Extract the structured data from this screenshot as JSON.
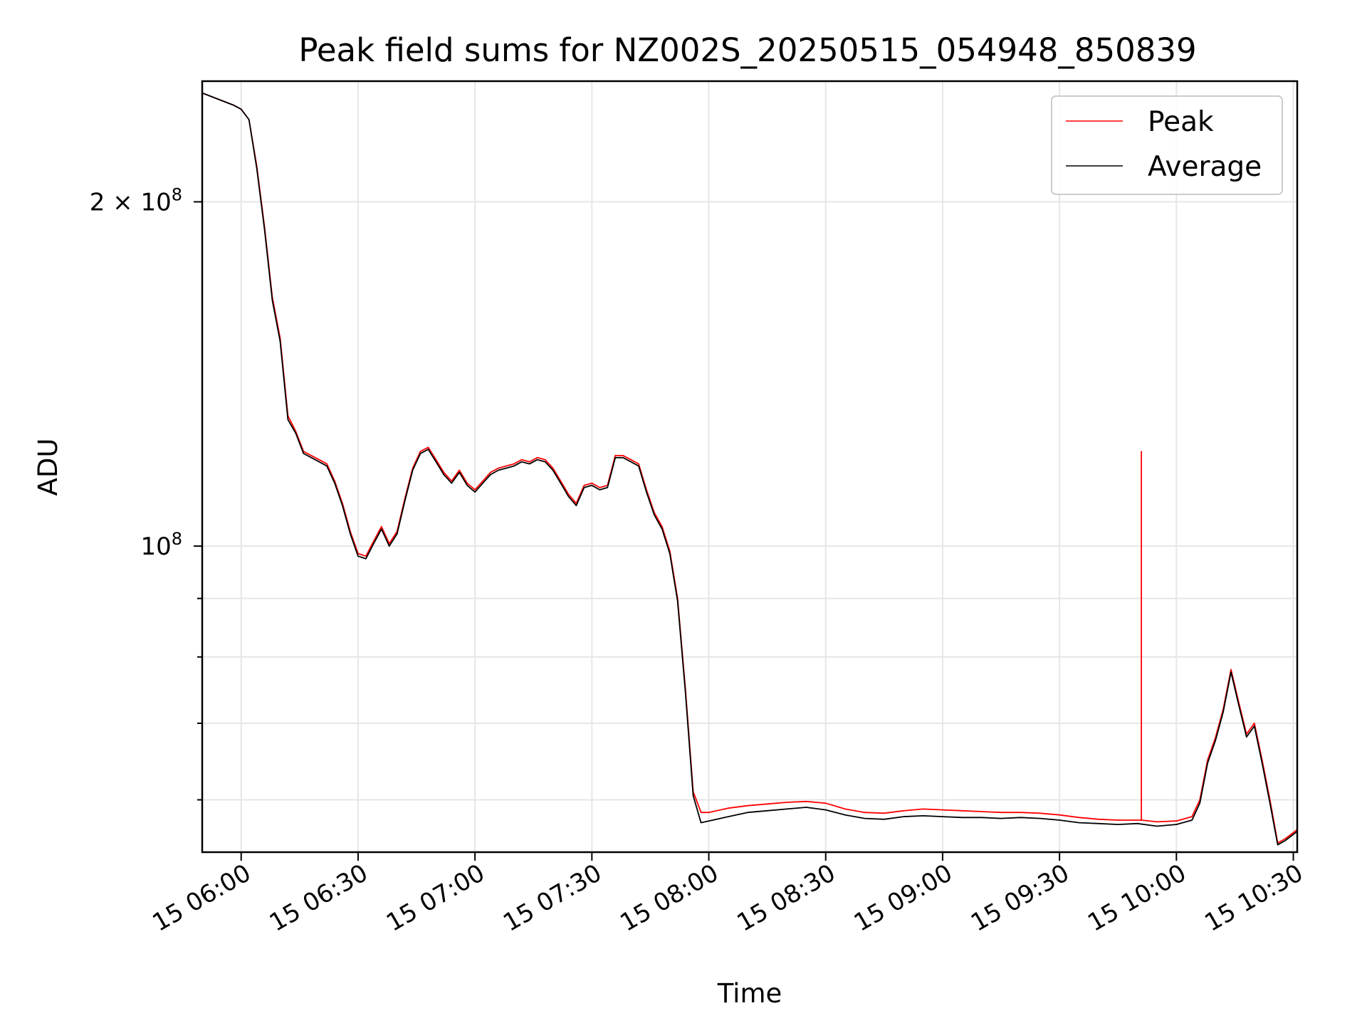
{
  "chart_data": {
    "type": "line",
    "title": "Peak field sums for NZ002S_20250515_054948_850839",
    "xlabel": "Time",
    "ylabel": "ADU",
    "yscale": "log",
    "grid": true,
    "legend_position": "top-right",
    "xlim": [
      "2025-05-15 05:50",
      "2025-05-15 10:31"
    ],
    "ylim": [
      54000000,
      255000000
    ],
    "x_ticks": [
      {
        "value": "2025-05-15 06:00",
        "label": "15 06:00"
      },
      {
        "value": "2025-05-15 06:30",
        "label": "15 06:30"
      },
      {
        "value": "2025-05-15 07:00",
        "label": "15 07:00"
      },
      {
        "value": "2025-05-15 07:30",
        "label": "15 07:30"
      },
      {
        "value": "2025-05-15 08:00",
        "label": "15 08:00"
      },
      {
        "value": "2025-05-15 08:30",
        "label": "15 08:30"
      },
      {
        "value": "2025-05-15 09:00",
        "label": "15 09:00"
      },
      {
        "value": "2025-05-15 09:30",
        "label": "15 09:30"
      },
      {
        "value": "2025-05-15 10:00",
        "label": "15 10:00"
      },
      {
        "value": "2025-05-15 10:30",
        "label": "15 10:30"
      }
    ],
    "y_major_ticks": [
      {
        "value": 100000000,
        "label": "10",
        "sup": "8"
      },
      {
        "value": 200000000,
        "label": "2 × 10",
        "sup": "8"
      }
    ],
    "y_minor_ticks": [
      60000000,
      70000000,
      80000000,
      90000000
    ],
    "series": [
      {
        "name": "Peak",
        "color": "#ff0000",
        "points": [
          [
            "2025-05-15 05:50",
            249000000
          ],
          [
            "2025-05-15 05:54",
            246000000
          ],
          [
            "2025-05-15 05:58",
            243000000
          ],
          [
            "2025-05-15 06:00",
            241000000
          ],
          [
            "2025-05-15 06:02",
            236000000
          ],
          [
            "2025-05-15 06:04",
            215000000
          ],
          [
            "2025-05-15 06:06",
            190000000
          ],
          [
            "2025-05-15 06:08",
            165000000
          ],
          [
            "2025-05-15 06:10",
            152000000
          ],
          [
            "2025-05-15 06:12",
            130000000
          ],
          [
            "2025-05-15 06:14",
            126000000
          ],
          [
            "2025-05-15 06:16",
            121000000
          ],
          [
            "2025-05-15 06:18",
            120000000
          ],
          [
            "2025-05-15 06:20",
            119000000
          ],
          [
            "2025-05-15 06:22",
            118000000
          ],
          [
            "2025-05-15 06:24",
            114000000
          ],
          [
            "2025-05-15 06:26",
            109000000
          ],
          [
            "2025-05-15 06:28",
            103000000
          ],
          [
            "2025-05-15 06:30",
            98500000
          ],
          [
            "2025-05-15 06:32",
            98000000
          ],
          [
            "2025-05-15 06:34",
            101000000
          ],
          [
            "2025-05-15 06:36",
            104000000
          ],
          [
            "2025-05-15 06:38",
            100500000
          ],
          [
            "2025-05-15 06:40",
            103000000
          ],
          [
            "2025-05-15 06:42",
            110000000
          ],
          [
            "2025-05-15 06:44",
            117000000
          ],
          [
            "2025-05-15 06:46",
            121000000
          ],
          [
            "2025-05-15 06:48",
            122000000
          ],
          [
            "2025-05-15 06:50",
            119000000
          ],
          [
            "2025-05-15 06:52",
            116000000
          ],
          [
            "2025-05-15 06:54",
            114000000
          ],
          [
            "2025-05-15 06:56",
            116500000
          ],
          [
            "2025-05-15 06:58",
            113500000
          ],
          [
            "2025-05-15 07:00",
            112000000
          ],
          [
            "2025-05-15 07:02",
            114000000
          ],
          [
            "2025-05-15 07:04",
            116000000
          ],
          [
            "2025-05-15 07:06",
            117000000
          ],
          [
            "2025-05-15 07:08",
            117500000
          ],
          [
            "2025-05-15 07:10",
            118000000
          ],
          [
            "2025-05-15 07:12",
            119000000
          ],
          [
            "2025-05-15 07:14",
            118500000
          ],
          [
            "2025-05-15 07:16",
            119500000
          ],
          [
            "2025-05-15 07:18",
            119000000
          ],
          [
            "2025-05-15 07:20",
            117000000
          ],
          [
            "2025-05-15 07:22",
            114000000
          ],
          [
            "2025-05-15 07:24",
            111000000
          ],
          [
            "2025-05-15 07:26",
            109000000
          ],
          [
            "2025-05-15 07:28",
            113000000
          ],
          [
            "2025-05-15 07:30",
            113500000
          ],
          [
            "2025-05-15 07:32",
            112500000
          ],
          [
            "2025-05-15 07:34",
            113000000
          ],
          [
            "2025-05-15 07:36",
            120000000
          ],
          [
            "2025-05-15 07:38",
            120000000
          ],
          [
            "2025-05-15 07:40",
            119000000
          ],
          [
            "2025-05-15 07:42",
            118000000
          ],
          [
            "2025-05-15 07:44",
            112000000
          ],
          [
            "2025-05-15 07:46",
            107000000
          ],
          [
            "2025-05-15 07:48",
            104000000
          ],
          [
            "2025-05-15 07:50",
            99000000
          ],
          [
            "2025-05-15 07:52",
            90000000
          ],
          [
            "2025-05-15 07:54",
            75000000
          ],
          [
            "2025-05-15 07:56",
            61000000
          ],
          [
            "2025-05-15 07:58",
            58500000
          ],
          [
            "2025-05-15 08:00",
            58500000
          ],
          [
            "2025-05-15 08:05",
            59000000
          ],
          [
            "2025-05-15 08:10",
            59300000
          ],
          [
            "2025-05-15 08:15",
            59500000
          ],
          [
            "2025-05-15 08:20",
            59700000
          ],
          [
            "2025-05-15 08:25",
            59800000
          ],
          [
            "2025-05-15 08:30",
            59600000
          ],
          [
            "2025-05-15 08:35",
            58900000
          ],
          [
            "2025-05-15 08:40",
            58500000
          ],
          [
            "2025-05-15 08:45",
            58400000
          ],
          [
            "2025-05-15 08:50",
            58700000
          ],
          [
            "2025-05-15 08:55",
            58900000
          ],
          [
            "2025-05-15 09:00",
            58800000
          ],
          [
            "2025-05-15 09:05",
            58700000
          ],
          [
            "2025-05-15 09:10",
            58600000
          ],
          [
            "2025-05-15 09:15",
            58500000
          ],
          [
            "2025-05-15 09:20",
            58500000
          ],
          [
            "2025-05-15 09:25",
            58400000
          ],
          [
            "2025-05-15 09:30",
            58200000
          ],
          [
            "2025-05-15 09:35",
            57900000
          ],
          [
            "2025-05-15 09:40",
            57700000
          ],
          [
            "2025-05-15 09:45",
            57600000
          ],
          [
            "2025-05-15 09:50",
            57600000
          ],
          [
            "2025-05-15 09:51",
            57600000
          ],
          [
            "2025-05-15 09:51",
            121000000
          ],
          [
            "2025-05-15 09:51",
            57600000
          ],
          [
            "2025-05-15 09:55",
            57400000
          ],
          [
            "2025-05-15 10:00",
            57500000
          ],
          [
            "2025-05-15 10:04",
            58000000
          ],
          [
            "2025-05-15 10:06",
            60000000
          ],
          [
            "2025-05-15 10:08",
            65000000
          ],
          [
            "2025-05-15 10:10",
            68000000
          ],
          [
            "2025-05-15 10:12",
            72000000
          ],
          [
            "2025-05-15 10:14",
            78000000
          ],
          [
            "2025-05-15 10:16",
            73000000
          ],
          [
            "2025-05-15 10:18",
            68500000
          ],
          [
            "2025-05-15 10:20",
            70000000
          ],
          [
            "2025-05-15 10:22",
            65000000
          ],
          [
            "2025-05-15 10:24",
            60000000
          ],
          [
            "2025-05-15 10:26",
            55000000
          ],
          [
            "2025-05-15 10:28",
            55500000
          ],
          [
            "2025-05-15 10:31",
            56500000
          ]
        ]
      },
      {
        "name": "Average",
        "color": "#000000",
        "points": [
          [
            "2025-05-15 05:50",
            249000000
          ],
          [
            "2025-05-15 05:54",
            246000000
          ],
          [
            "2025-05-15 05:58",
            243000000
          ],
          [
            "2025-05-15 06:00",
            241000000
          ],
          [
            "2025-05-15 06:02",
            236000000
          ],
          [
            "2025-05-15 06:04",
            214000000
          ],
          [
            "2025-05-15 06:06",
            189000000
          ],
          [
            "2025-05-15 06:08",
            164000000
          ],
          [
            "2025-05-15 06:10",
            151000000
          ],
          [
            "2025-05-15 06:12",
            129000000
          ],
          [
            "2025-05-15 06:14",
            125500000
          ],
          [
            "2025-05-15 06:16",
            120500000
          ],
          [
            "2025-05-15 06:18",
            119500000
          ],
          [
            "2025-05-15 06:20",
            118500000
          ],
          [
            "2025-05-15 06:22",
            117500000
          ],
          [
            "2025-05-15 06:24",
            113500000
          ],
          [
            "2025-05-15 06:26",
            108500000
          ],
          [
            "2025-05-15 06:28",
            102500000
          ],
          [
            "2025-05-15 06:30",
            98000000
          ],
          [
            "2025-05-15 06:32",
            97500000
          ],
          [
            "2025-05-15 06:34",
            100500000
          ],
          [
            "2025-05-15 06:36",
            103500000
          ],
          [
            "2025-05-15 06:38",
            100000000
          ],
          [
            "2025-05-15 06:40",
            102500000
          ],
          [
            "2025-05-15 06:42",
            109500000
          ],
          [
            "2025-05-15 06:44",
            116500000
          ],
          [
            "2025-05-15 06:46",
            120500000
          ],
          [
            "2025-05-15 06:48",
            121500000
          ],
          [
            "2025-05-15 06:50",
            118500000
          ],
          [
            "2025-05-15 06:52",
            115500000
          ],
          [
            "2025-05-15 06:54",
            113500000
          ],
          [
            "2025-05-15 06:56",
            116000000
          ],
          [
            "2025-05-15 06:58",
            113000000
          ],
          [
            "2025-05-15 07:00",
            111500000
          ],
          [
            "2025-05-15 07:02",
            113500000
          ],
          [
            "2025-05-15 07:04",
            115500000
          ],
          [
            "2025-05-15 07:06",
            116500000
          ],
          [
            "2025-05-15 07:08",
            117000000
          ],
          [
            "2025-05-15 07:10",
            117500000
          ],
          [
            "2025-05-15 07:12",
            118500000
          ],
          [
            "2025-05-15 07:14",
            118000000
          ],
          [
            "2025-05-15 07:16",
            119000000
          ],
          [
            "2025-05-15 07:18",
            118500000
          ],
          [
            "2025-05-15 07:20",
            116500000
          ],
          [
            "2025-05-15 07:22",
            113500000
          ],
          [
            "2025-05-15 07:24",
            110500000
          ],
          [
            "2025-05-15 07:26",
            108500000
          ],
          [
            "2025-05-15 07:28",
            112500000
          ],
          [
            "2025-05-15 07:30",
            113000000
          ],
          [
            "2025-05-15 07:32",
            112000000
          ],
          [
            "2025-05-15 07:34",
            112500000
          ],
          [
            "2025-05-15 07:36",
            119500000
          ],
          [
            "2025-05-15 07:38",
            119500000
          ],
          [
            "2025-05-15 07:40",
            118500000
          ],
          [
            "2025-05-15 07:42",
            117500000
          ],
          [
            "2025-05-15 07:44",
            111500000
          ],
          [
            "2025-05-15 07:46",
            106500000
          ],
          [
            "2025-05-15 07:48",
            103500000
          ],
          [
            "2025-05-15 07:50",
            98500000
          ],
          [
            "2025-05-15 07:52",
            89500000
          ],
          [
            "2025-05-15 07:54",
            74500000
          ],
          [
            "2025-05-15 07:56",
            60500000
          ],
          [
            "2025-05-15 07:58",
            57300000
          ],
          [
            "2025-05-15 08:00",
            57500000
          ],
          [
            "2025-05-15 08:05",
            58000000
          ],
          [
            "2025-05-15 08:10",
            58500000
          ],
          [
            "2025-05-15 08:15",
            58700000
          ],
          [
            "2025-05-15 08:20",
            58900000
          ],
          [
            "2025-05-15 08:25",
            59100000
          ],
          [
            "2025-05-15 08:30",
            58800000
          ],
          [
            "2025-05-15 08:35",
            58200000
          ],
          [
            "2025-05-15 08:40",
            57800000
          ],
          [
            "2025-05-15 08:45",
            57700000
          ],
          [
            "2025-05-15 08:50",
            58000000
          ],
          [
            "2025-05-15 08:55",
            58100000
          ],
          [
            "2025-05-15 09:00",
            58000000
          ],
          [
            "2025-05-15 09:05",
            57900000
          ],
          [
            "2025-05-15 09:10",
            57900000
          ],
          [
            "2025-05-15 09:15",
            57800000
          ],
          [
            "2025-05-15 09:20",
            57900000
          ],
          [
            "2025-05-15 09:25",
            57800000
          ],
          [
            "2025-05-15 09:30",
            57600000
          ],
          [
            "2025-05-15 09:35",
            57300000
          ],
          [
            "2025-05-15 09:40",
            57200000
          ],
          [
            "2025-05-15 09:45",
            57100000
          ],
          [
            "2025-05-15 09:50",
            57200000
          ],
          [
            "2025-05-15 09:55",
            56900000
          ],
          [
            "2025-05-15 10:00",
            57100000
          ],
          [
            "2025-05-15 10:04",
            57600000
          ],
          [
            "2025-05-15 10:06",
            59600000
          ],
          [
            "2025-05-15 10:08",
            64600000
          ],
          [
            "2025-05-15 10:10",
            67600000
          ],
          [
            "2025-05-15 10:12",
            71600000
          ],
          [
            "2025-05-15 10:14",
            77600000
          ],
          [
            "2025-05-15 10:16",
            72600000
          ],
          [
            "2025-05-15 10:18",
            68100000
          ],
          [
            "2025-05-15 10:20",
            69600000
          ],
          [
            "2025-05-15 10:22",
            64600000
          ],
          [
            "2025-05-15 10:24",
            59600000
          ],
          [
            "2025-05-15 10:26",
            54800000
          ],
          [
            "2025-05-15 10:28",
            55300000
          ],
          [
            "2025-05-15 10:31",
            56300000
          ]
        ]
      }
    ]
  }
}
